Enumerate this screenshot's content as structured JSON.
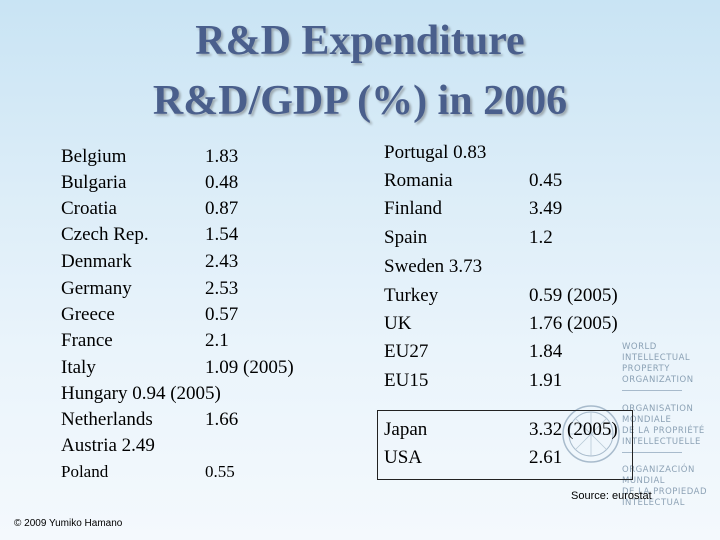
{
  "title": {
    "line1": "R&D Expenditure",
    "line2": "R&D/GDP (%) in 2006"
  },
  "left_rows": [
    {
      "name": "Belgium",
      "value": "1.83"
    },
    {
      "name": "Bulgaria",
      "value": "0.48"
    },
    {
      "name": "Croatia",
      "value": "0.87"
    },
    {
      "name": "Czech Rep.",
      "value": "1.54"
    },
    {
      "name": "Denmark",
      "value": "2.43"
    },
    {
      "name": "Germany",
      "value": "2.53"
    },
    {
      "name": "Greece",
      "value": "0.57"
    },
    {
      "name": "France",
      "value": "2.1"
    },
    {
      "name": "Italy",
      "value": "1.09 (2005)"
    },
    {
      "text": "Hungary 0.94 (2005)"
    },
    {
      "name": "Netherlands",
      "value": "1.66"
    },
    {
      "text": "Austria  2.49"
    },
    {
      "name": "Poland",
      "value": "0.55"
    }
  ],
  "right_rows": [
    {
      "text": "Portugal 0.83"
    },
    {
      "name": "Romania",
      "value": "0.45"
    },
    {
      "name": "Finland",
      "value": "3.49"
    },
    {
      "name": "Spain",
      "value": "1.2"
    },
    {
      "text": "Sweden  3.73"
    },
    {
      "name": "Turkey",
      "value": "0.59 (2005)"
    },
    {
      "name": "UK",
      "value": "1.76 (2005)"
    },
    {
      "name": "EU27",
      "value": "1.84"
    },
    {
      "name": "EU15",
      "value": "1.91"
    }
  ],
  "boxed_rows": [
    {
      "name": "Japan",
      "value": "3.32 (2005)"
    },
    {
      "name": "USA",
      "value": "2.61"
    }
  ],
  "wipo_logo": {
    "lines": [
      "WORLD",
      "INTELLECTUAL",
      "PROPERTY",
      "ORGANIZATION",
      "ORGANISATION",
      "MONDIALE",
      "DE LA PROPRIÉTÉ",
      "INTELLECTUELLE",
      "ORGANIZACIÓN",
      "MUNDIAL",
      "DE LA PROPIEDAD",
      "INTELECTUAL"
    ]
  },
  "source": "Source: eurostat",
  "copyright": "© 2009 Yumiko Hamano"
}
